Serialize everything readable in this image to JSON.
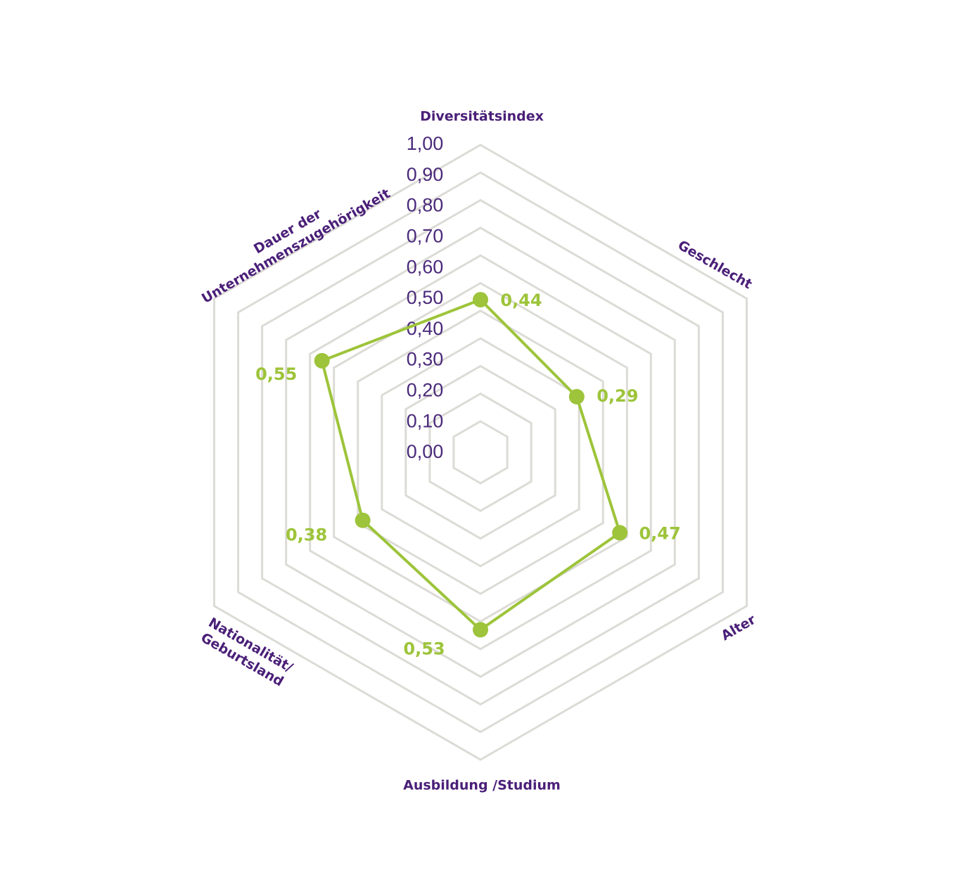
{
  "chart_data": {
    "type": "radar",
    "title": "",
    "axes": [
      "Diversitätsindex",
      "Geschlecht",
      "Alter",
      "Ausbildung /Studium",
      "Nationalität/ Geburtsland",
      "Dauer der Unternehmenszugehörigkeit"
    ],
    "axis_label_lines": [
      [
        "Diversitätsindex"
      ],
      [
        "Geschlecht"
      ],
      [
        "Alter"
      ],
      [
        "Ausbildung /Studium"
      ],
      [
        "Nationalität/",
        "Geburtsland"
      ],
      [
        "Dauer der",
        "Unternehmenszugehörigkeit"
      ]
    ],
    "range": [
      0,
      1
    ],
    "ticks": [
      "0,00",
      "0,10",
      "0,20",
      "0,30",
      "0,40",
      "0,50",
      "0,60",
      "0,70",
      "0,80",
      "0,90",
      "1,00"
    ],
    "series": [
      {
        "values": [
          0.44,
          0.29,
          0.47,
          0.53,
          0.38,
          0.55
        ],
        "labels": [
          "0,44",
          "0,29",
          "0,47",
          "0,53",
          "0,38",
          "0,55"
        ]
      }
    ],
    "grid": true,
    "colors": {
      "series": "#9dc43a",
      "grid": "#dcdbd6",
      "text": "#4a1f78"
    }
  }
}
